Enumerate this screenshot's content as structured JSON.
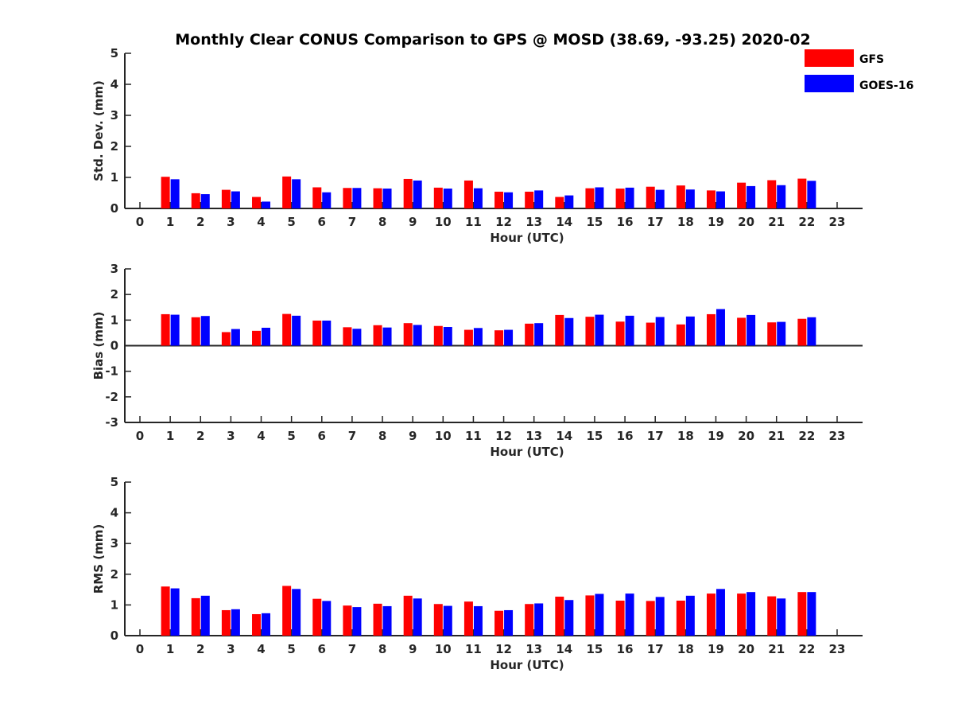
{
  "title": "Monthly Clear CONUS Comparison to GPS @ MOSD (38.69, -93.25) 2020-02",
  "legend": [
    {
      "name": "GFS",
      "color": "#ff0000"
    },
    {
      "name": "GOES-16",
      "color": "#0000ff"
    }
  ],
  "chart_data": [
    {
      "type": "bar",
      "xlabel": "Hour (UTC)",
      "ylabel": "Std. Dev. (mm)",
      "xlim": [
        0,
        23
      ],
      "ylim": [
        0,
        5
      ],
      "yticks": [
        0,
        1,
        2,
        3,
        4,
        5
      ],
      "categories": [
        0,
        1,
        2,
        3,
        4,
        5,
        6,
        7,
        8,
        9,
        10,
        11,
        12,
        13,
        14,
        15,
        16,
        17,
        18,
        19,
        20,
        21,
        22,
        23
      ],
      "series": [
        {
          "name": "GFS",
          "values": [
            null,
            1.02,
            0.49,
            0.6,
            0.37,
            1.03,
            0.68,
            0.66,
            0.65,
            0.95,
            0.67,
            0.9,
            0.54,
            0.54,
            0.37,
            0.65,
            0.64,
            0.7,
            0.74,
            0.58,
            0.83,
            0.91,
            0.96,
            null
          ]
        },
        {
          "name": "GOES-16",
          "values": [
            null,
            0.94,
            0.46,
            0.55,
            0.22,
            0.94,
            0.52,
            0.66,
            0.64,
            0.9,
            0.64,
            0.65,
            0.52,
            0.58,
            0.42,
            0.68,
            0.67,
            0.6,
            0.61,
            0.55,
            0.72,
            0.75,
            0.89,
            null
          ]
        }
      ]
    },
    {
      "type": "bar",
      "xlabel": "Hour (UTC)",
      "ylabel": "Bias (mm)",
      "xlim": [
        0,
        23
      ],
      "ylim": [
        -3,
        3
      ],
      "yticks": [
        -3,
        -2,
        -1,
        0,
        1,
        2,
        3
      ],
      "categories": [
        0,
        1,
        2,
        3,
        4,
        5,
        6,
        7,
        8,
        9,
        10,
        11,
        12,
        13,
        14,
        15,
        16,
        17,
        18,
        19,
        20,
        21,
        22,
        23
      ],
      "series": [
        {
          "name": "GFS",
          "values": [
            null,
            1.23,
            1.11,
            0.53,
            0.58,
            1.24,
            0.98,
            0.72,
            0.8,
            0.88,
            0.77,
            0.62,
            0.6,
            0.86,
            1.2,
            1.13,
            0.94,
            0.9,
            0.83,
            1.23,
            1.09,
            0.91,
            1.05,
            null
          ]
        },
        {
          "name": "GOES-16",
          "values": [
            null,
            1.21,
            1.16,
            0.65,
            0.7,
            1.17,
            0.98,
            0.66,
            0.71,
            0.81,
            0.73,
            0.69,
            0.62,
            0.88,
            1.08,
            1.21,
            1.17,
            1.12,
            1.14,
            1.43,
            1.2,
            0.93,
            1.11,
            null
          ]
        }
      ]
    },
    {
      "type": "bar",
      "xlabel": "Hour (UTC)",
      "ylabel": "RMS (mm)",
      "xlim": [
        0,
        23
      ],
      "ylim": [
        0,
        5
      ],
      "yticks": [
        0,
        1,
        2,
        3,
        4,
        5
      ],
      "categories": [
        0,
        1,
        2,
        3,
        4,
        5,
        6,
        7,
        8,
        9,
        10,
        11,
        12,
        13,
        14,
        15,
        16,
        17,
        18,
        19,
        20,
        21,
        22,
        23
      ],
      "series": [
        {
          "name": "GFS",
          "values": [
            null,
            1.6,
            1.22,
            0.83,
            0.7,
            1.62,
            1.2,
            0.98,
            1.04,
            1.3,
            1.03,
            1.11,
            0.81,
            1.03,
            1.27,
            1.31,
            1.14,
            1.13,
            1.14,
            1.37,
            1.37,
            1.28,
            1.42,
            null
          ]
        },
        {
          "name": "GOES-16",
          "values": [
            null,
            1.54,
            1.3,
            0.86,
            0.73,
            1.52,
            1.13,
            0.93,
            0.96,
            1.21,
            0.97,
            0.96,
            0.83,
            1.05,
            1.16,
            1.36,
            1.37,
            1.26,
            1.3,
            1.52,
            1.42,
            1.21,
            1.42,
            null
          ]
        }
      ]
    }
  ]
}
